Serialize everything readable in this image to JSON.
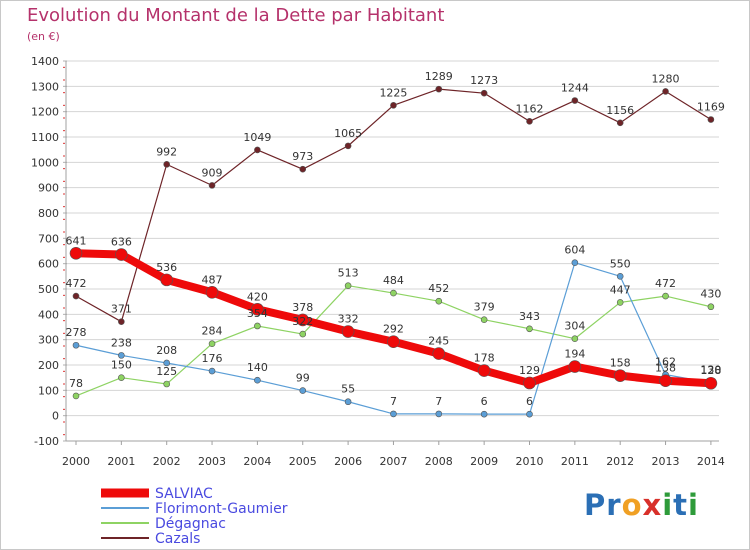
{
  "title": "Evolution du Montant de la Dette par Habitant",
  "unit": "(en €)",
  "logo": {
    "parts": [
      "Pr",
      "o",
      "x",
      "i",
      "t",
      "i"
    ],
    "colors": [
      "#2b6fb5",
      "#f0a024",
      "#d8302a",
      "#2e9b3a",
      "#2b6fb5",
      "#2e9b3a"
    ]
  },
  "chart_data": {
    "type": "line",
    "x": [
      "2000",
      "2001",
      "2002",
      "2003",
      "2004",
      "2005",
      "2006",
      "2007",
      "2008",
      "2009",
      "2010",
      "2011",
      "2012",
      "2013",
      "2014"
    ],
    "ylim": [
      -100,
      1400
    ],
    "yticks": [
      -100,
      0,
      100,
      200,
      300,
      400,
      500,
      600,
      700,
      800,
      900,
      1000,
      1100,
      1200,
      1300,
      1400
    ],
    "grid": true,
    "legend_position": "bottom-left",
    "series": [
      {
        "name": "Cazals",
        "color": "#6e2428",
        "values": [
          472,
          371,
          992,
          909,
          1049,
          973,
          1065,
          1225,
          1289,
          1273,
          1162,
          1244,
          1156,
          1280,
          1169
        ]
      },
      {
        "name": "Dégagnac",
        "color": "#8ed363",
        "values": [
          78,
          150,
          125,
          284,
          354,
          322,
          513,
          484,
          452,
          379,
          343,
          304,
          447,
          472,
          430
        ]
      },
      {
        "name": "Florimont-Gaumier",
        "color": "#5b9ed6",
        "values": [
          278,
          238,
          208,
          176,
          140,
          99,
          55,
          7,
          7,
          6,
          6,
          604,
          550,
          162,
          130
        ]
      },
      {
        "name": "SALVIAC",
        "color": "#ee0a0a",
        "values": [
          641,
          636,
          536,
          487,
          420,
          378,
          332,
          292,
          245,
          178,
          129,
          194,
          158,
          138,
          128
        ]
      }
    ],
    "labels_shown": {
      "Cazals": [
        "472",
        "371",
        "992",
        "909",
        "1049",
        "973",
        "1065",
        "1225",
        "1289",
        "1273",
        "1162",
        "1244",
        "1156",
        "1280",
        "1169"
      ],
      "Dégagnac": [
        "78",
        "150",
        "125",
        "284",
        "354",
        "322",
        "513",
        "484",
        "452",
        "379",
        "343",
        "304",
        "447",
        "472",
        "430"
      ],
      "Florimont-Gaumier": [
        "278",
        "238",
        "208",
        "176",
        "140",
        "99",
        "55",
        "7",
        "7",
        "6",
        "6",
        "604",
        "550",
        "162",
        "130"
      ],
      "SALVIAC": [
        "641",
        "636",
        "536",
        "487",
        "420",
        "378",
        "332",
        "292",
        "245",
        "178",
        "129",
        "194",
        "158",
        "138",
        "128"
      ]
    }
  }
}
